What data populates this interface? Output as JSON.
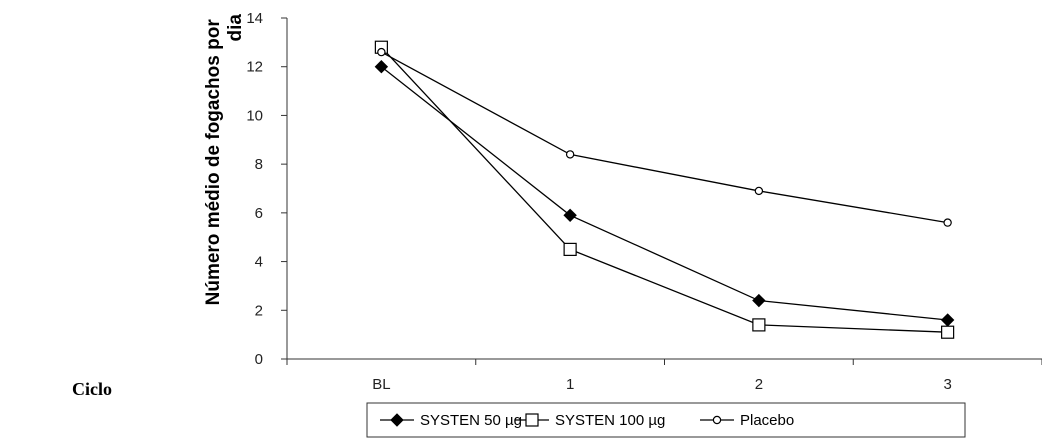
{
  "chart_data": {
    "type": "line",
    "title": "",
    "xlabel": "",
    "ylabel": "Número médio de fogachos por dia",
    "side_label": "Ciclo",
    "categories": [
      "BL",
      "1",
      "2",
      "3"
    ],
    "ylim": [
      0,
      14
    ],
    "yticks": [
      0,
      2,
      4,
      6,
      8,
      10,
      12,
      14
    ],
    "grid": false,
    "legend_position": "bottom",
    "series": [
      {
        "name": "SYSTEN 50 µg",
        "marker": "filled-diamond",
        "values": [
          12.0,
          5.9,
          2.4,
          1.6
        ]
      },
      {
        "name": "SYSTEN 100 µg",
        "marker": "open-square",
        "values": [
          12.8,
          4.5,
          1.4,
          1.1
        ]
      },
      {
        "name": "Placebo",
        "marker": "open-circle",
        "values": [
          12.6,
          8.4,
          6.9,
          5.6
        ]
      }
    ],
    "colors": {
      "line": "#000000",
      "axis": "#333333"
    }
  }
}
